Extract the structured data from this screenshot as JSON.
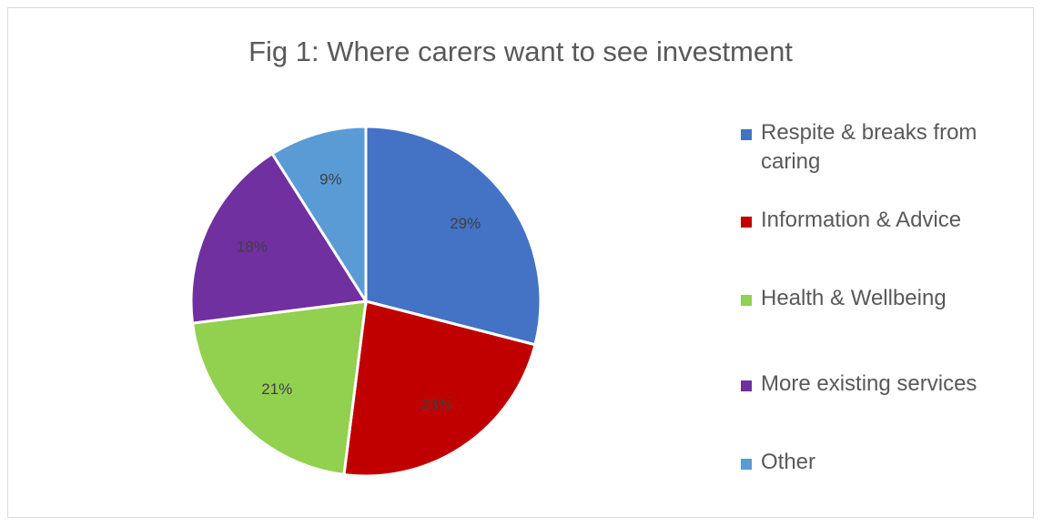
{
  "chart_data": {
    "type": "pie",
    "title": "Fig 1: Where carers want to see investment",
    "categories": [
      "Respite & breaks from caring",
      "Information & Advice",
      "Health & Wellbeing",
      "More existing services",
      "Other"
    ],
    "values": [
      29,
      23,
      21,
      18,
      9
    ],
    "data_labels": [
      "29%",
      "23%",
      "21%",
      "18%",
      "9%"
    ],
    "colors": [
      "#4472c4",
      "#c00000",
      "#92d050",
      "#7030a0",
      "#5b9bd5"
    ],
    "start_angle_deg": 0,
    "direction": "clockwise",
    "legend_position": "right"
  }
}
